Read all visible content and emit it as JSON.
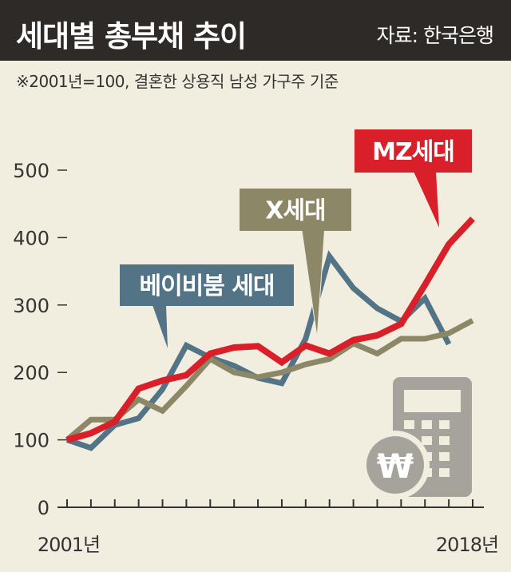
{
  "header": {
    "title": "세대별 총부채 추이",
    "source": "자료: 한국은행"
  },
  "note": "※2001년=100, 결혼한 상용직 남성 가구주 기준",
  "chart_data": {
    "type": "line",
    "title": "세대별 총부채 추이",
    "xlabel": "",
    "ylabel": "",
    "x_start_label": "2001년",
    "x_end_label": "2018년",
    "x": [
      2001,
      2002,
      2003,
      2004,
      2005,
      2006,
      2007,
      2008,
      2009,
      2010,
      2011,
      2012,
      2013,
      2014,
      2015,
      2016,
      2017,
      2018
    ],
    "yticks": [
      "0",
      "100",
      "200",
      "300",
      "400",
      "500"
    ],
    "ylim": [
      0,
      520
    ],
    "grid": false,
    "series": [
      {
        "name": "베이비붐 세대",
        "color": "#527486",
        "values": [
          100,
          88,
          122,
          132,
          175,
          240,
          222,
          210,
          192,
          184,
          250,
          372,
          325,
          295,
          276,
          310,
          242,
          null
        ]
      },
      {
        "name": "X세대",
        "color": "#8c8766",
        "values": [
          100,
          130,
          130,
          160,
          143,
          180,
          220,
          200,
          193,
          200,
          212,
          220,
          243,
          228,
          250,
          250,
          258,
          277
        ]
      },
      {
        "name": "MZ세대",
        "color": "#d9202a",
        "values": [
          100,
          110,
          127,
          176,
          188,
          196,
          228,
          237,
          239,
          215,
          240,
          228,
          248,
          255,
          272,
          330,
          390,
          428
        ]
      }
    ]
  },
  "icon": "calculator-won-icon",
  "colors": {
    "header": "#2e2a27",
    "background": "#f1eee0",
    "icon": "#a5a39b"
  }
}
